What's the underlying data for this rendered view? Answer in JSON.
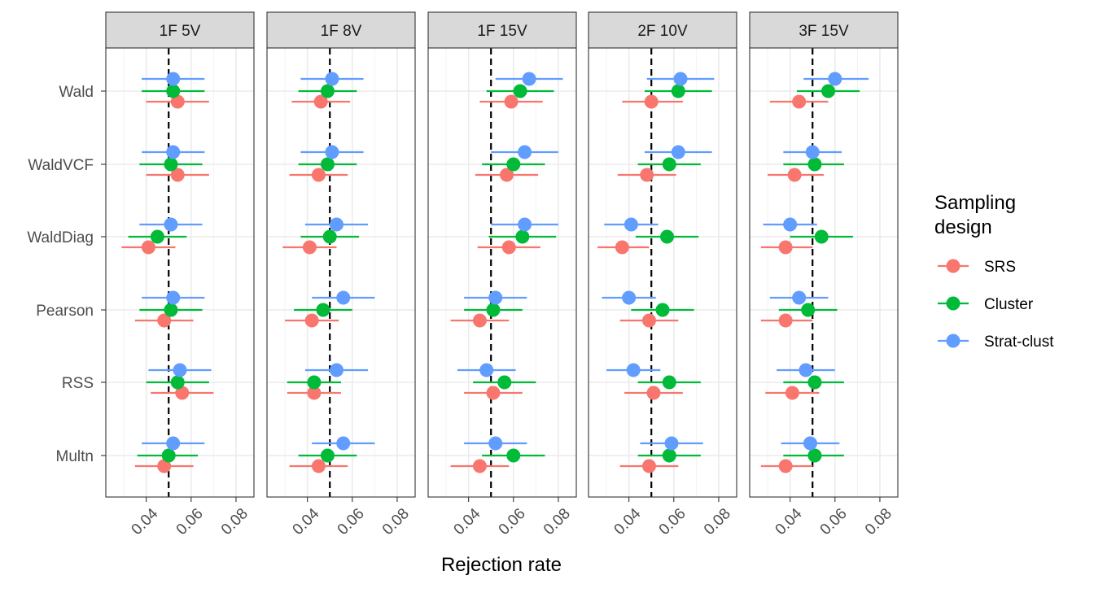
{
  "chart_data": {
    "type": "scatter",
    "subtype": "faceted forest plot (point estimate with interval)",
    "xlabel": "Rejection rate",
    "ylabel": "",
    "xlim": [
      0.022,
      0.088
    ],
    "x_ticks": [
      0.04,
      0.06,
      0.08
    ],
    "x_tick_labels": [
      "0.04",
      "0.06",
      "0.08"
    ],
    "reference_line": 0.05,
    "grid": true,
    "legend_position": "right",
    "legend_title": "Sampling\ndesign",
    "categories": [
      "Wald",
      "WaldVCF",
      "WaldDiag",
      "Pearson",
      "RSS",
      "Multn"
    ],
    "panels": [
      "1F 5V",
      "1F 8V",
      "1F 15V",
      "2F 10V",
      "3F 15V"
    ],
    "series": [
      {
        "name": "SRS",
        "color": "#F8766D",
        "data": {
          "1F 5V": {
            "Wald": {
              "est": 0.054,
              "lo": 0.04,
              "hi": 0.068
            },
            "WaldVCF": {
              "est": 0.054,
              "lo": 0.04,
              "hi": 0.068
            },
            "WaldDiag": {
              "est": 0.041,
              "lo": 0.029,
              "hi": 0.053
            },
            "Pearson": {
              "est": 0.048,
              "lo": 0.035,
              "hi": 0.061
            },
            "RSS": {
              "est": 0.056,
              "lo": 0.042,
              "hi": 0.07
            },
            "Multn": {
              "est": 0.048,
              "lo": 0.035,
              "hi": 0.061
            }
          },
          "1F 8V": {
            "Wald": {
              "est": 0.046,
              "lo": 0.033,
              "hi": 0.059
            },
            "WaldVCF": {
              "est": 0.045,
              "lo": 0.032,
              "hi": 0.058
            },
            "WaldDiag": {
              "est": 0.041,
              "lo": 0.029,
              "hi": 0.053
            },
            "Pearson": {
              "est": 0.042,
              "lo": 0.03,
              "hi": 0.054
            },
            "RSS": {
              "est": 0.043,
              "lo": 0.031,
              "hi": 0.055
            },
            "Multn": {
              "est": 0.045,
              "lo": 0.032,
              "hi": 0.058
            }
          },
          "1F 15V": {
            "Wald": {
              "est": 0.059,
              "lo": 0.045,
              "hi": 0.073
            },
            "WaldVCF": {
              "est": 0.057,
              "lo": 0.043,
              "hi": 0.071
            },
            "WaldDiag": {
              "est": 0.058,
              "lo": 0.044,
              "hi": 0.072
            },
            "Pearson": {
              "est": 0.045,
              "lo": 0.032,
              "hi": 0.058
            },
            "RSS": {
              "est": 0.051,
              "lo": 0.038,
              "hi": 0.064
            },
            "Multn": {
              "est": 0.045,
              "lo": 0.032,
              "hi": 0.058
            }
          },
          "2F 10V": {
            "Wald": {
              "est": 0.05,
              "lo": 0.037,
              "hi": 0.064
            },
            "WaldVCF": {
              "est": 0.048,
              "lo": 0.035,
              "hi": 0.061
            },
            "WaldDiag": {
              "est": 0.037,
              "lo": 0.026,
              "hi": 0.049
            },
            "Pearson": {
              "est": 0.049,
              "lo": 0.036,
              "hi": 0.062
            },
            "RSS": {
              "est": 0.051,
              "lo": 0.038,
              "hi": 0.064
            },
            "Multn": {
              "est": 0.049,
              "lo": 0.036,
              "hi": 0.062
            }
          },
          "3F 15V": {
            "Wald": {
              "est": 0.044,
              "lo": 0.031,
              "hi": 0.057
            },
            "WaldVCF": {
              "est": 0.042,
              "lo": 0.03,
              "hi": 0.055
            },
            "WaldDiag": {
              "est": 0.038,
              "lo": 0.027,
              "hi": 0.05
            },
            "Pearson": {
              "est": 0.038,
              "lo": 0.027,
              "hi": 0.05
            },
            "RSS": {
              "est": 0.041,
              "lo": 0.029,
              "hi": 0.053
            },
            "Multn": {
              "est": 0.038,
              "lo": 0.027,
              "hi": 0.05
            }
          }
        }
      },
      {
        "name": "Cluster",
        "color": "#00BA38",
        "data": {
          "1F 5V": {
            "Wald": {
              "est": 0.052,
              "lo": 0.038,
              "hi": 0.066
            },
            "WaldVCF": {
              "est": 0.051,
              "lo": 0.037,
              "hi": 0.065
            },
            "WaldDiag": {
              "est": 0.045,
              "lo": 0.032,
              "hi": 0.058
            },
            "Pearson": {
              "est": 0.051,
              "lo": 0.037,
              "hi": 0.065
            },
            "RSS": {
              "est": 0.054,
              "lo": 0.04,
              "hi": 0.068
            },
            "Multn": {
              "est": 0.05,
              "lo": 0.036,
              "hi": 0.063
            }
          },
          "1F 8V": {
            "Wald": {
              "est": 0.049,
              "lo": 0.036,
              "hi": 0.062
            },
            "WaldVCF": {
              "est": 0.049,
              "lo": 0.036,
              "hi": 0.062
            },
            "WaldDiag": {
              "est": 0.05,
              "lo": 0.037,
              "hi": 0.063
            },
            "Pearson": {
              "est": 0.047,
              "lo": 0.034,
              "hi": 0.06
            },
            "RSS": {
              "est": 0.043,
              "lo": 0.031,
              "hi": 0.055
            },
            "Multn": {
              "est": 0.049,
              "lo": 0.036,
              "hi": 0.062
            }
          },
          "1F 15V": {
            "Wald": {
              "est": 0.063,
              "lo": 0.048,
              "hi": 0.078
            },
            "WaldVCF": {
              "est": 0.06,
              "lo": 0.046,
              "hi": 0.074
            },
            "WaldDiag": {
              "est": 0.064,
              "lo": 0.049,
              "hi": 0.079
            },
            "Pearson": {
              "est": 0.051,
              "lo": 0.038,
              "hi": 0.064
            },
            "RSS": {
              "est": 0.056,
              "lo": 0.042,
              "hi": 0.07
            },
            "Multn": {
              "est": 0.06,
              "lo": 0.046,
              "hi": 0.074
            }
          },
          "2F 10V": {
            "Wald": {
              "est": 0.062,
              "lo": 0.047,
              "hi": 0.077
            },
            "WaldVCF": {
              "est": 0.058,
              "lo": 0.044,
              "hi": 0.072
            },
            "WaldDiag": {
              "est": 0.057,
              "lo": 0.043,
              "hi": 0.071
            },
            "Pearson": {
              "est": 0.055,
              "lo": 0.041,
              "hi": 0.069
            },
            "RSS": {
              "est": 0.058,
              "lo": 0.044,
              "hi": 0.072
            },
            "Multn": {
              "est": 0.058,
              "lo": 0.044,
              "hi": 0.072
            }
          },
          "3F 15V": {
            "Wald": {
              "est": 0.057,
              "lo": 0.043,
              "hi": 0.071
            },
            "WaldVCF": {
              "est": 0.051,
              "lo": 0.037,
              "hi": 0.064
            },
            "WaldDiag": {
              "est": 0.054,
              "lo": 0.04,
              "hi": 0.068
            },
            "Pearson": {
              "est": 0.048,
              "lo": 0.035,
              "hi": 0.061
            },
            "RSS": {
              "est": 0.051,
              "lo": 0.037,
              "hi": 0.064
            },
            "Multn": {
              "est": 0.051,
              "lo": 0.037,
              "hi": 0.064
            }
          }
        }
      },
      {
        "name": "Strat-clust",
        "color": "#619CFF",
        "data": {
          "1F 5V": {
            "Wald": {
              "est": 0.052,
              "lo": 0.038,
              "hi": 0.066
            },
            "WaldVCF": {
              "est": 0.052,
              "lo": 0.038,
              "hi": 0.066
            },
            "WaldDiag": {
              "est": 0.051,
              "lo": 0.037,
              "hi": 0.065
            },
            "Pearson": {
              "est": 0.052,
              "lo": 0.038,
              "hi": 0.066
            },
            "RSS": {
              "est": 0.055,
              "lo": 0.041,
              "hi": 0.069
            },
            "Multn": {
              "est": 0.052,
              "lo": 0.038,
              "hi": 0.066
            }
          },
          "1F 8V": {
            "Wald": {
              "est": 0.051,
              "lo": 0.037,
              "hi": 0.065
            },
            "WaldVCF": {
              "est": 0.051,
              "lo": 0.037,
              "hi": 0.065
            },
            "WaldDiag": {
              "est": 0.053,
              "lo": 0.039,
              "hi": 0.067
            },
            "Pearson": {
              "est": 0.056,
              "lo": 0.042,
              "hi": 0.07
            },
            "RSS": {
              "est": 0.053,
              "lo": 0.039,
              "hi": 0.067
            },
            "Multn": {
              "est": 0.056,
              "lo": 0.042,
              "hi": 0.07
            }
          },
          "1F 15V": {
            "Wald": {
              "est": 0.067,
              "lo": 0.052,
              "hi": 0.082
            },
            "WaldVCF": {
              "est": 0.065,
              "lo": 0.05,
              "hi": 0.08
            },
            "WaldDiag": {
              "est": 0.065,
              "lo": 0.05,
              "hi": 0.08
            },
            "Pearson": {
              "est": 0.052,
              "lo": 0.038,
              "hi": 0.066
            },
            "RSS": {
              "est": 0.048,
              "lo": 0.035,
              "hi": 0.061
            },
            "Multn": {
              "est": 0.052,
              "lo": 0.038,
              "hi": 0.066
            }
          },
          "2F 10V": {
            "Wald": {
              "est": 0.063,
              "lo": 0.048,
              "hi": 0.078
            },
            "WaldVCF": {
              "est": 0.062,
              "lo": 0.047,
              "hi": 0.077
            },
            "WaldDiag": {
              "est": 0.041,
              "lo": 0.029,
              "hi": 0.053
            },
            "Pearson": {
              "est": 0.04,
              "lo": 0.028,
              "hi": 0.052
            },
            "RSS": {
              "est": 0.042,
              "lo": 0.03,
              "hi": 0.054
            },
            "Multn": {
              "est": 0.059,
              "lo": 0.045,
              "hi": 0.073
            }
          },
          "3F 15V": {
            "Wald": {
              "est": 0.06,
              "lo": 0.046,
              "hi": 0.075
            },
            "WaldVCF": {
              "est": 0.05,
              "lo": 0.037,
              "hi": 0.063
            },
            "WaldDiag": {
              "est": 0.04,
              "lo": 0.028,
              "hi": 0.052
            },
            "Pearson": {
              "est": 0.044,
              "lo": 0.031,
              "hi": 0.057
            },
            "RSS": {
              "est": 0.047,
              "lo": 0.034,
              "hi": 0.06
            },
            "Multn": {
              "est": 0.049,
              "lo": 0.036,
              "hi": 0.062
            }
          }
        }
      }
    ]
  }
}
